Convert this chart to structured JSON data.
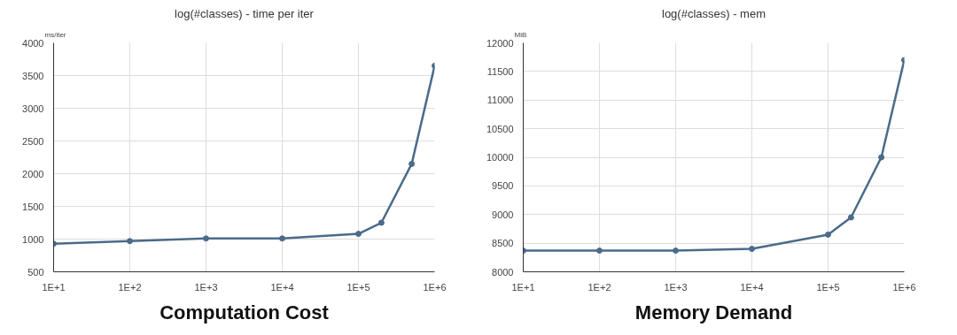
{
  "chart_data": [
    {
      "type": "line",
      "title": "log(#classes) - time per iter",
      "ylabel": "ms/iter",
      "annotations": [
        "Computation Cost"
      ],
      "x": [
        10,
        100,
        1000,
        10000,
        100000,
        200000,
        500000,
        1000000
      ],
      "series": [
        {
          "color": "#4a6b8a",
          "values": [
            930,
            970,
            1010,
            1010,
            1080,
            1250,
            2150,
            3650
          ]
        }
      ],
      "log": "x",
      "xlim": [
        10,
        1000000
      ],
      "xticks": [
        {
          "value": 10,
          "label": "1E+1"
        },
        {
          "value": 100,
          "label": "1E+2"
        },
        {
          "value": 1000,
          "label": "1E+3"
        },
        {
          "value": 10000,
          "label": "1E+4"
        },
        {
          "value": 100000,
          "label": "1E+5"
        },
        {
          "value": 1000000,
          "label": "1E+6"
        }
      ],
      "ylim": [
        500,
        4000
      ],
      "yticks": [
        500,
        1000,
        1500,
        2000,
        2500,
        3000,
        3500,
        4000
      ],
      "grid": true,
      "marker": "circle",
      "line_style": "solid"
    },
    {
      "type": "line",
      "title": "log(#classes) - mem",
      "ylabel": "MiB",
      "annotations": [
        "Memory Demand"
      ],
      "x": [
        10,
        100,
        1000,
        10000,
        100000,
        200000,
        500000,
        1000000
      ],
      "series": [
        {
          "color": "#4a6b8a",
          "values": [
            8370,
            8370,
            8370,
            8400,
            8650,
            8950,
            10000,
            11700
          ]
        }
      ],
      "log": "x",
      "xlim": [
        10,
        1000000
      ],
      "xticks": [
        {
          "value": 10,
          "label": "1E+1"
        },
        {
          "value": 100,
          "label": "1E+2"
        },
        {
          "value": 1000,
          "label": "1E+3"
        },
        {
          "value": 10000,
          "label": "1E+4"
        },
        {
          "value": 100000,
          "label": "1E+5"
        },
        {
          "value": 1000000,
          "label": "1E+6"
        }
      ],
      "ylim": [
        8000,
        12000
      ],
      "yticks": [
        8000,
        8500,
        9000,
        9500,
        10000,
        10500,
        11000,
        11500,
        12000
      ],
      "grid": true,
      "marker": "circle",
      "line_style": "solid"
    }
  ]
}
